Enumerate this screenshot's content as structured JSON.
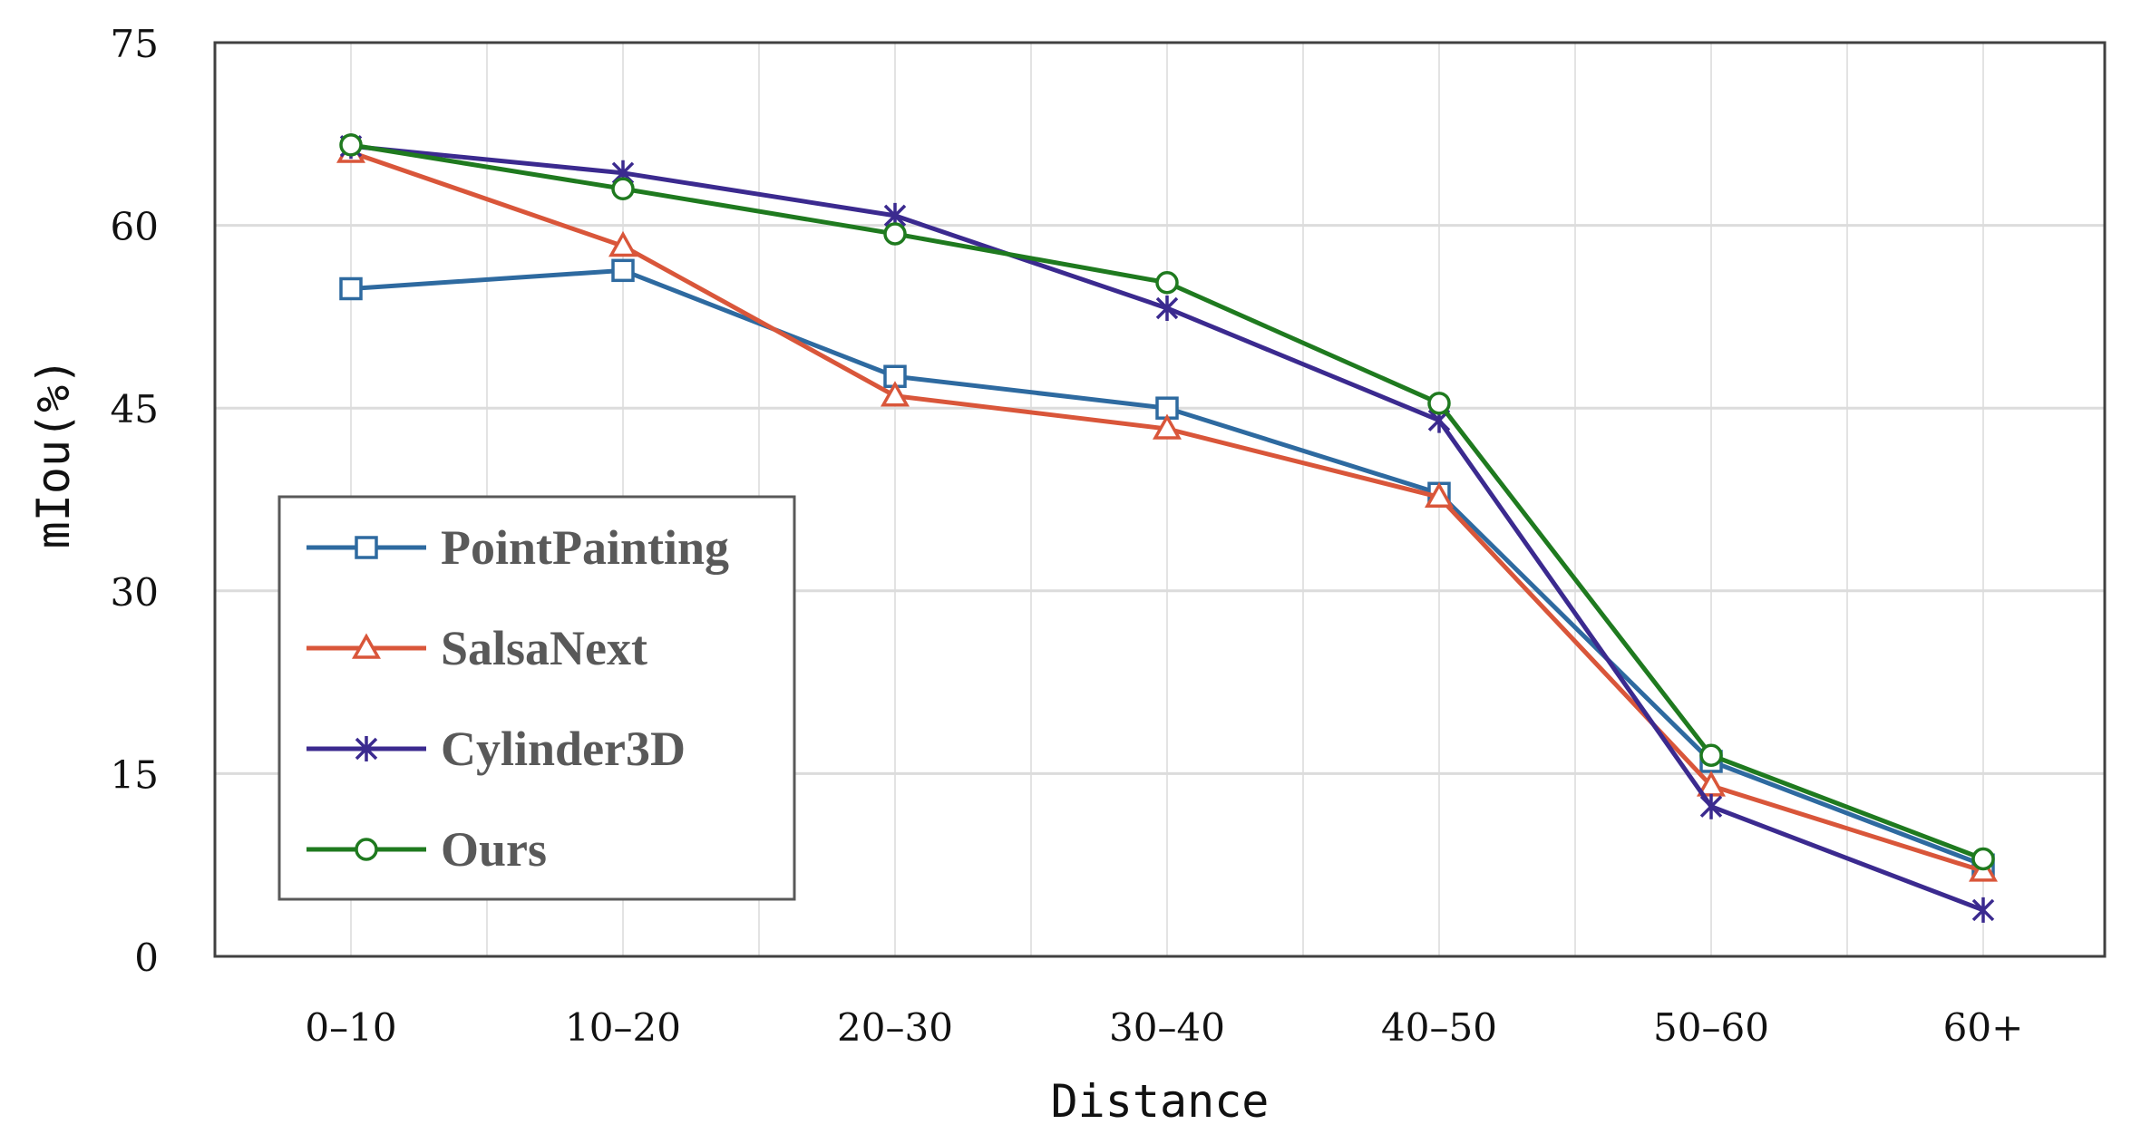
{
  "chart_data": {
    "type": "line",
    "title": "",
    "xlabel": "Distance",
    "ylabel": "mIou(%)",
    "categories": [
      "0–10",
      "10–20",
      "20–30",
      "30–40",
      "40–50",
      "50–60",
      "60+"
    ],
    "ylim": [
      0,
      75
    ],
    "yticks": [
      "0",
      "15",
      "30",
      "45",
      "60",
      "75"
    ],
    "grid": true,
    "legend_position": "left",
    "series": [
      {
        "name": "PointPainting",
        "color": "#2e6aa0",
        "marker": "square",
        "values": [
          54.8,
          56.3,
          47.6,
          45.0,
          38.0,
          16.0,
          7.5
        ]
      },
      {
        "name": "SalsaNext",
        "color": "#d9563a",
        "marker": "triangle",
        "values": [
          66.0,
          58.3,
          46.0,
          43.3,
          37.7,
          14.0,
          7.0
        ]
      },
      {
        "name": "Cylinder3D",
        "color": "#3b2a8f",
        "marker": "x-star",
        "values": [
          66.5,
          64.3,
          60.8,
          53.2,
          44.0,
          12.3,
          3.8
        ]
      },
      {
        "name": "Ours",
        "color": "#1f7a1f",
        "marker": "circle",
        "values": [
          66.6,
          63.0,
          59.3,
          55.3,
          45.4,
          16.5,
          8.0
        ]
      }
    ]
  }
}
